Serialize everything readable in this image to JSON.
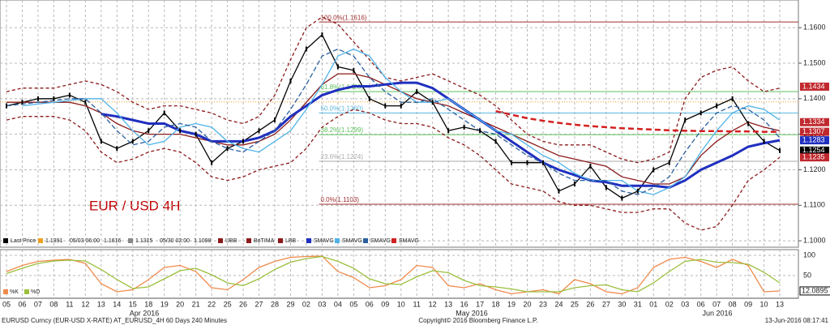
{
  "chart_data": {
    "type": "line",
    "title": "EUR / USD 4H",
    "categories": [
      "05",
      "06",
      "07",
      "08",
      "11",
      "12",
      "13",
      "14",
      "15",
      "18",
      "19",
      "20",
      "21",
      "22",
      "25",
      "26",
      "27",
      "28",
      "29",
      "02",
      "03",
      "04",
      "05",
      "06",
      "09",
      "10",
      "11",
      "12",
      "13",
      "16",
      "17",
      "18",
      "19",
      "20",
      "23",
      "24",
      "25",
      "26",
      "27",
      "30",
      "31",
      "01",
      "02",
      "03",
      "06",
      "07",
      "08",
      "09",
      "10",
      "13"
    ],
    "months": [
      "Apr 2016",
      "May 2016",
      "Jun 2016"
    ],
    "ylim": [
      1.0982,
      1.1678
    ],
    "yticks": [
      {
        "value": 1.1,
        "label": "1.1000"
      },
      {
        "value": 1.11,
        "label": "1.1100"
      },
      {
        "value": 1.12,
        "label": "1.1200"
      },
      {
        "value": 1.13,
        "label": "1.1300"
      },
      {
        "value": 1.14,
        "label": "1.1400"
      },
      {
        "value": 1.15,
        "label": "1.1500"
      },
      {
        "value": 1.16,
        "label": "1.1600"
      }
    ],
    "grid": true,
    "series": [
      {
        "name": "Last Price",
        "color": "#000000",
        "values": [
          1.138,
          1.139,
          1.14,
          1.14,
          1.141,
          1.139,
          1.128,
          1.126,
          1.128,
          1.131,
          1.136,
          1.131,
          1.13,
          1.122,
          1.126,
          1.128,
          1.131,
          1.134,
          1.145,
          1.154,
          1.158,
          1.149,
          1.148,
          1.14,
          1.138,
          1.138,
          1.142,
          1.139,
          1.131,
          1.132,
          1.131,
          1.128,
          1.122,
          1.122,
          1.122,
          1.114,
          1.116,
          1.121,
          1.115,
          1.112,
          1.114,
          1.12,
          1.122,
          1.134,
          1.136,
          1.138,
          1.14,
          1.133,
          1.128,
          1.1254
        ]
      },
      {
        "name": "UBB",
        "color": "#8b1a1a",
        "dash": "4 3",
        "values": [
          1.142,
          1.143,
          1.143,
          1.143,
          1.144,
          1.145,
          1.144,
          1.142,
          1.139,
          1.137,
          1.138,
          1.138,
          1.137,
          1.136,
          1.134,
          1.133,
          1.135,
          1.141,
          1.151,
          1.16,
          1.163,
          1.161,
          1.156,
          1.151,
          1.146,
          1.145,
          1.146,
          1.147,
          1.145,
          1.143,
          1.141,
          1.138,
          1.134,
          1.13,
          1.128,
          1.127,
          1.127,
          1.127,
          1.125,
          1.123,
          1.122,
          1.123,
          1.125,
          1.14,
          1.146,
          1.148,
          1.149,
          1.145,
          1.142,
          1.143
        ]
      },
      {
        "name": "BoTIMA",
        "color": "#8b1a1a",
        "values": [
          1.139,
          1.139,
          1.139,
          1.139,
          1.139,
          1.138,
          1.136,
          1.133,
          1.131,
          1.13,
          1.13,
          1.13,
          1.129,
          1.128,
          1.127,
          1.127,
          1.128,
          1.13,
          1.134,
          1.139,
          1.144,
          1.147,
          1.147,
          1.146,
          1.144,
          1.142,
          1.14,
          1.139,
          1.138,
          1.136,
          1.134,
          1.132,
          1.13,
          1.128,
          1.126,
          1.124,
          1.123,
          1.122,
          1.121,
          1.118,
          1.117,
          1.116,
          1.116,
          1.118,
          1.124,
          1.128,
          1.131,
          1.1334,
          1.132,
          1.131
        ]
      },
      {
        "name": "LBB",
        "color": "#8b1a1a",
        "dash": "4 3",
        "values": [
          1.134,
          1.135,
          1.135,
          1.135,
          1.134,
          1.131,
          1.125,
          1.122,
          1.123,
          1.125,
          1.126,
          1.125,
          1.122,
          1.118,
          1.117,
          1.118,
          1.12,
          1.121,
          1.122,
          1.126,
          1.132,
          1.135,
          1.137,
          1.136,
          1.134,
          1.133,
          1.133,
          1.132,
          1.129,
          1.127,
          1.124,
          1.12,
          1.116,
          1.115,
          1.114,
          1.111,
          1.11,
          1.11,
          1.109,
          1.108,
          1.108,
          1.109,
          1.109,
          1.105,
          1.103,
          1.104,
          1.11,
          1.117,
          1.12,
          1.1235
        ]
      },
      {
        "name": "SMAVG",
        "color": "#1f2fbf",
        "width": 3,
        "values": [
          null,
          null,
          null,
          null,
          null,
          null,
          1.1357,
          1.135,
          1.134,
          1.133,
          1.133,
          1.131,
          1.13,
          1.128,
          1.128,
          1.128,
          1.129,
          1.131,
          1.135,
          1.138,
          1.141,
          1.1425,
          1.1435,
          1.1435,
          1.144,
          1.1445,
          1.1445,
          1.143,
          1.14,
          1.137,
          1.134,
          1.131,
          1.128,
          1.125,
          1.122,
          1.12,
          1.1185,
          1.117,
          1.1165,
          1.1155,
          1.1155,
          1.1155,
          1.115,
          1.117,
          1.12,
          1.122,
          1.124,
          1.1265,
          1.1275,
          1.1283
        ]
      },
      {
        "name": "SMAVG",
        "color": "#4fb3e8",
        "values": [
          null,
          1.138,
          1.1385,
          1.139,
          1.1395,
          1.14,
          1.14,
          1.136,
          1.131,
          1.127,
          1.128,
          1.132,
          1.133,
          1.132,
          1.128,
          1.126,
          1.125,
          1.128,
          1.131,
          1.137,
          1.144,
          1.152,
          1.154,
          1.152,
          1.146,
          1.142,
          1.139,
          1.139,
          1.14,
          1.137,
          1.134,
          1.131,
          1.13,
          1.127,
          1.124,
          1.122,
          1.119,
          1.117,
          1.117,
          1.117,
          1.114,
          1.113,
          1.115,
          1.118,
          1.125,
          1.131,
          1.136,
          1.138,
          1.137,
          1.134
        ]
      },
      {
        "name": "SMAVG",
        "color": "#2a5f9e",
        "dash": "6 3",
        "values": [
          1.138,
          1.1385,
          1.139,
          1.1395,
          1.14,
          1.14,
          1.136,
          1.131,
          1.127,
          1.128,
          1.132,
          1.133,
          1.132,
          1.128,
          1.126,
          1.125,
          1.128,
          1.131,
          1.137,
          1.144,
          1.152,
          1.154,
          1.152,
          1.146,
          1.142,
          1.139,
          1.139,
          1.14,
          1.137,
          1.134,
          1.131,
          1.13,
          1.127,
          1.124,
          1.122,
          1.119,
          1.117,
          1.117,
          1.117,
          1.114,
          1.113,
          1.115,
          1.118,
          1.125,
          1.131,
          1.136,
          1.138,
          1.137,
          1.134,
          1.129
        ]
      },
      {
        "name": "SMAVG",
        "color": "#d42020",
        "dash": "7 4",
        "width": 2.5,
        "values": [
          null,
          null,
          null,
          null,
          null,
          null,
          null,
          null,
          null,
          null,
          null,
          null,
          null,
          null,
          null,
          null,
          null,
          null,
          null,
          null,
          null,
          null,
          null,
          null,
          null,
          null,
          null,
          null,
          null,
          null,
          null,
          1.1365,
          1.1355,
          1.1345,
          1.1338,
          1.1332,
          1.1327,
          1.1323,
          1.132,
          1.1317,
          1.1315,
          1.1313,
          1.1311,
          1.131,
          1.1309,
          1.1309,
          1.1308,
          1.1308,
          1.1307,
          1.1307
        ]
      }
    ],
    "legend_stats": [
      {
        "value": 1.1391,
        "color": "#f0a020"
      },
      {
        "label": "05/03 06:00",
        "value": 1.1616
      },
      {
        "value": 1.1315
      },
      {
        "label": "05/30 02:00",
        "value": 1.1098
      }
    ],
    "fib_levels": [
      {
        "value": 1.1616,
        "label": "100.0%(1.1616)",
        "color": "#a03030"
      },
      {
        "value": 1.142,
        "label": "61.8%(1.1420)",
        "color": "#5cc05c"
      },
      {
        "value": 1.136,
        "label": "50.0%(1.1360)",
        "color": "#5ab8e0"
      },
      {
        "value": 1.1299,
        "label": "38.2%(1.1299)",
        "color": "#5cc05c"
      },
      {
        "value": 1.1224,
        "label": "23.6%(1.1224)",
        "color": "#aaaaaa"
      },
      {
        "value": 1.1103,
        "label": "0.0%(1.1103)",
        "color": "#a03030"
      }
    ],
    "price_tags": [
      {
        "value": 1.1434,
        "color": "#c0282d"
      },
      {
        "value": 1.1334,
        "color": "#c0282d"
      },
      {
        "value": 1.1307,
        "color": "#c0282d"
      },
      {
        "value": 1.1283,
        "color": "#1f2fbf"
      },
      {
        "value": 1.1254,
        "color": "#000000"
      },
      {
        "value": 1.1235,
        "color": "#c0282d"
      }
    ],
    "lower_panel": {
      "ylim": [
        -6,
        114
      ],
      "yticks": [
        50,
        100
      ],
      "last_value": 12.0895,
      "series": [
        {
          "name": "%K",
          "color": "#f08a4b",
          "values": [
            60,
            75,
            85,
            88,
            90,
            80,
            30,
            10,
            15,
            40,
            70,
            75,
            60,
            20,
            15,
            40,
            70,
            85,
            95,
            97,
            98,
            60,
            45,
            20,
            25,
            40,
            75,
            70,
            25,
            20,
            30,
            15,
            5,
            10,
            15,
            5,
            40,
            30,
            10,
            5,
            20,
            70,
            90,
            95,
            85,
            70,
            90,
            75,
            10,
            12
          ]
        },
        {
          "name": "%D",
          "color": "#9bbf3b",
          "values": [
            55,
            68,
            80,
            86,
            88,
            86,
            65,
            40,
            18,
            22,
            42,
            62,
            68,
            52,
            32,
            25,
            42,
            65,
            83,
            92,
            97,
            85,
            68,
            42,
            30,
            28,
            47,
            62,
            57,
            38,
            25,
            22,
            17,
            10,
            10,
            10,
            20,
            25,
            27,
            15,
            10,
            32,
            60,
            85,
            90,
            83,
            82,
            78,
            58,
            32
          ]
        }
      ]
    },
    "footer": {
      "left": "EURUSD Curncy (EUR-USD X-RATE) AT_EURUSD_4H 60 Days 240 Minutes",
      "center": "Copyright© 2016 Bloomberg Finance L.P.",
      "right": "13-Jun-2016 08:17:41"
    }
  }
}
